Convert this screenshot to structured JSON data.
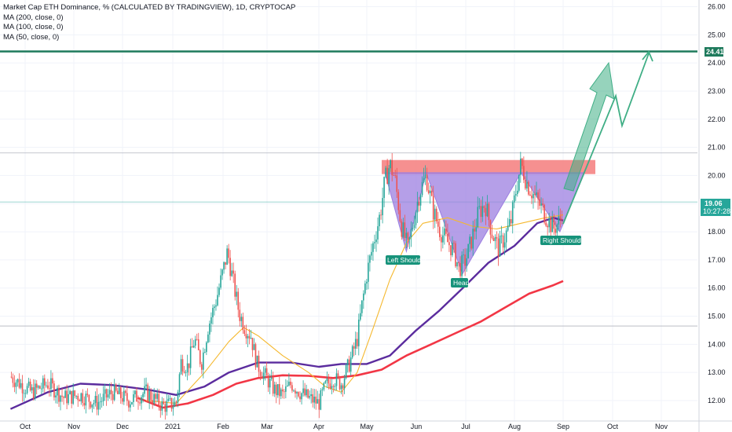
{
  "legend": {
    "title": "Market Cap ETH Dominance, % (CALCULATED BY TRADINGVIEW), 1D, CRYPTOCAP",
    "ma1": "MA (200, close, 0)",
    "ma2": "MA (100, close, 0)",
    "ma3": "MA (50, close, 0)"
  },
  "colors": {
    "up": "#26a69a",
    "down": "#ef5350",
    "ma200": "#f23645",
    "ma100": "#5b2c9e",
    "ma50": "#f5b82e",
    "resistance_line": "#1e7a5c",
    "pattern_fill": "#9c7fe0",
    "zone_fill": "#f47c7c",
    "arrow": "#3fae85"
  },
  "price_tags": {
    "resistance": "24.41",
    "current_price": "19.06",
    "countdown": "10:27:28"
  },
  "annotations": {
    "left_shoulder": "Left Shoulder",
    "head": "Head",
    "right_shoulder": "Right Shoulder"
  },
  "chart_data": {
    "type": "candlestick",
    "title": "Market Cap ETH Dominance, % (CALCULATED BY TRADINGVIEW), 1D, CRYPTOCAP",
    "x_tick_labels": [
      "Oct",
      "Nov",
      "Dec",
      "2021",
      "Feb",
      "Mar",
      "Apr",
      "May",
      "Jun",
      "Jul",
      "Aug",
      "Sep",
      "Oct",
      "Nov"
    ],
    "y_tick_labels": [
      "12.00",
      "13.00",
      "14.00",
      "15.00",
      "16.00",
      "17.00",
      "18.00",
      "19.00",
      "20.00",
      "21.00",
      "22.00",
      "23.00",
      "24.00",
      "25.00",
      "26.00"
    ],
    "ylim": [
      11.55,
      26.3
    ],
    "close_path": [
      [
        "Sep 22",
        12.85
      ],
      [
        "Oct 5",
        12.3
      ],
      [
        "Oct 15",
        12.6
      ],
      [
        "Oct 25",
        12.1
      ],
      [
        "Nov 5",
        12.2
      ],
      [
        "Nov 15",
        11.9
      ],
      [
        "Nov 25",
        12.3
      ],
      [
        "Dec 5",
        12.0
      ],
      [
        "Dec 15",
        12.3
      ],
      [
        "Dec 25",
        11.8
      ],
      [
        "Jan 3",
        11.9
      ],
      [
        "Jan 6",
        13.4
      ],
      [
        "Jan 10",
        13.2
      ],
      [
        "Jan 14",
        14.2
      ],
      [
        "Jan 18",
        13.3
      ],
      [
        "Jan 22",
        14.6
      ],
      [
        "Jan 27",
        15.6
      ],
      [
        "Jan 31",
        16.6
      ],
      [
        "Feb 4",
        17.3
      ],
      [
        "Feb 8",
        16.2
      ],
      [
        "Feb 12",
        15.1
      ],
      [
        "Feb 16",
        14.6
      ],
      [
        "Feb 20",
        14.3
      ],
      [
        "Feb 24",
        13.3
      ],
      [
        "Feb 28",
        13.0
      ],
      [
        "Mar 5",
        12.4
      ],
      [
        "Mar 10",
        12.2
      ],
      [
        "Mar 15",
        12.6
      ],
      [
        "Mar 20",
        12.3
      ],
      [
        "Mar 25",
        12.1
      ],
      [
        "Apr 1",
        11.9
      ],
      [
        "Apr 5",
        12.5
      ],
      [
        "Apr 10",
        12.8
      ],
      [
        "Apr 15",
        12.6
      ],
      [
        "Apr 20",
        13.3
      ],
      [
        "Apr 25",
        14.2
      ],
      [
        "Apr 28",
        15.4
      ],
      [
        "May 1",
        16.5
      ],
      [
        "May 5",
        17.6
      ],
      [
        "May 9",
        18.6
      ],
      [
        "May 12",
        19.8
      ],
      [
        "May 15",
        20.4
      ],
      [
        "May 18",
        19.9
      ],
      [
        "May 22",
        18.2
      ],
      [
        "May 26",
        17.4
      ],
      [
        "May 30",
        18.6
      ],
      [
        "Jun 3",
        19.4
      ],
      [
        "Jun 7",
        20.0
      ],
      [
        "Jun 11",
        18.8
      ],
      [
        "Jun 15",
        18.1
      ],
      [
        "Jun 19",
        17.7
      ],
      [
        "Jun 23",
        17.4
      ],
      [
        "Jun 27",
        16.7
      ],
      [
        "Jul 1",
        17.0
      ],
      [
        "Jul 5",
        17.8
      ],
      [
        "Jul 9",
        18.7
      ],
      [
        "Jul 13",
        19.0
      ],
      [
        "Jul 17",
        18.0
      ],
      [
        "Jul 21",
        17.4
      ],
      [
        "Jul 25",
        17.8
      ],
      [
        "Jul 29",
        18.4
      ],
      [
        "Aug 2",
        19.5
      ],
      [
        "Aug 5",
        20.4
      ],
      [
        "Aug 9",
        19.7
      ],
      [
        "Aug 13",
        19.3
      ],
      [
        "Aug 17",
        18.9
      ],
      [
        "Aug 21",
        18.5
      ],
      [
        "Aug 25",
        18.1
      ],
      [
        "Aug 29",
        18.4
      ],
      [
        "Sep 1",
        19.06
      ]
    ],
    "series": [
      {
        "name": "MA (200, close, 0)",
        "values": [
          [
            "Dec 10",
            12.1
          ],
          [
            "Dec 25",
            11.75
          ],
          [
            "Jan 10",
            11.9
          ],
          [
            "Jan 25",
            12.2
          ],
          [
            "Feb 10",
            12.6
          ],
          [
            "Feb 25",
            12.8
          ],
          [
            "Mar 10",
            12.9
          ],
          [
            "Mar 25",
            12.88
          ],
          [
            "Apr 10",
            12.8
          ],
          [
            "Apr 25",
            12.9
          ],
          [
            "May 10",
            13.1
          ],
          [
            "May 25",
            13.6
          ],
          [
            "Jun 10",
            14.0
          ],
          [
            "Jun 25",
            14.4
          ],
          [
            "Jul 10",
            14.8
          ],
          [
            "Jul 25",
            15.3
          ],
          [
            "Aug 10",
            15.8
          ],
          [
            "Aug 25",
            16.1
          ],
          [
            "Sep 1",
            16.25
          ]
        ]
      },
      {
        "name": "MA (100, close, 0)",
        "values": [
          [
            "Sep 22",
            11.7
          ],
          [
            "Oct 15",
            12.3
          ],
          [
            "Nov 5",
            12.6
          ],
          [
            "Nov 25",
            12.55
          ],
          [
            "Dec 15",
            12.4
          ],
          [
            "Jan 3",
            12.2
          ],
          [
            "Jan 20",
            12.5
          ],
          [
            "Feb 5",
            13.0
          ],
          [
            "Feb 25",
            13.35
          ],
          [
            "Mar 15",
            13.35
          ],
          [
            "Apr 1",
            13.2
          ],
          [
            "Apr 15",
            13.3
          ],
          [
            "May 1",
            13.3
          ],
          [
            "May 15",
            13.6
          ],
          [
            "Jun 1",
            14.5
          ],
          [
            "Jun 15",
            15.2
          ],
          [
            "Jul 1",
            16.1
          ],
          [
            "Jul 15",
            16.9
          ],
          [
            "Aug 1",
            17.5
          ],
          [
            "Aug 15",
            18.3
          ],
          [
            "Aug 25",
            18.5
          ],
          [
            "Sep 1",
            18.4
          ]
        ]
      },
      {
        "name": "MA (50, close, 0)",
        "values": [
          [
            "Dec 15",
            12.0
          ],
          [
            "Jan 3",
            11.9
          ],
          [
            "Jan 20",
            13.0
          ],
          [
            "Feb 5",
            14.1
          ],
          [
            "Feb 15",
            14.6
          ],
          [
            "Feb 25",
            14.3
          ],
          [
            "Mar 10",
            13.6
          ],
          [
            "Mar 25",
            13.0
          ],
          [
            "Apr 5",
            12.5
          ],
          [
            "Apr 15",
            12.3
          ],
          [
            "Apr 25",
            13.0
          ],
          [
            "May 5",
            14.6
          ],
          [
            "May 15",
            16.3
          ],
          [
            "May 25",
            17.6
          ],
          [
            "Jun 5",
            18.3
          ],
          [
            "Jun 20",
            18.5
          ],
          [
            "Jul 5",
            18.2
          ],
          [
            "Jul 20",
            18.1
          ],
          [
            "Aug 5",
            18.3
          ],
          [
            "Aug 20",
            18.5
          ],
          [
            "Sep 1",
            18.6
          ]
        ]
      }
    ],
    "horizontal_levels": [
      24.41,
      20.8,
      19.06,
      14.65
    ],
    "resistance_zone": [
      20.05,
      20.55
    ]
  }
}
